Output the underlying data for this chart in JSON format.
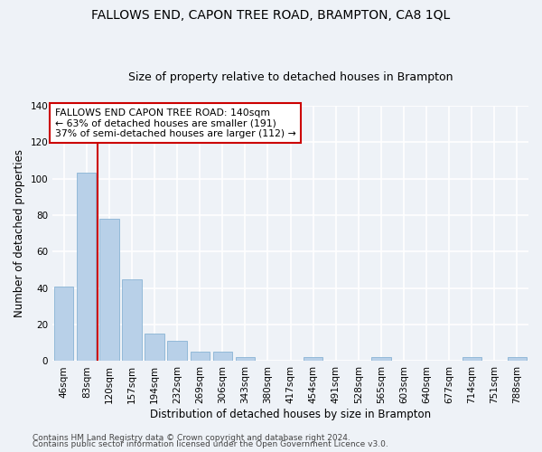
{
  "title": "FALLOWS END, CAPON TREE ROAD, BRAMPTON, CA8 1QL",
  "subtitle": "Size of property relative to detached houses in Brampton",
  "xlabel": "Distribution of detached houses by size in Brampton",
  "ylabel": "Number of detached properties",
  "bar_color": "#b8d0e8",
  "bar_edge_color": "#7aaace",
  "background_color": "#eef2f7",
  "grid_color": "#ffffff",
  "categories": [
    "46sqm",
    "83sqm",
    "120sqm",
    "157sqm",
    "194sqm",
    "232sqm",
    "269sqm",
    "306sqm",
    "343sqm",
    "380sqm",
    "417sqm",
    "454sqm",
    "491sqm",
    "528sqm",
    "565sqm",
    "603sqm",
    "640sqm",
    "677sqm",
    "714sqm",
    "751sqm",
    "788sqm"
  ],
  "values": [
    41,
    103,
    78,
    45,
    15,
    11,
    5,
    5,
    2,
    0,
    0,
    2,
    0,
    0,
    2,
    0,
    0,
    0,
    2,
    0,
    2
  ],
  "vline_x": 1.5,
  "vline_color": "#cc0000",
  "ylim": [
    0,
    140
  ],
  "yticks": [
    0,
    20,
    40,
    60,
    80,
    100,
    120,
    140
  ],
  "annotation_text": "FALLOWS END CAPON TREE ROAD: 140sqm\n← 63% of detached houses are smaller (191)\n37% of semi-detached houses are larger (112) →",
  "annotation_box_color": "#ffffff",
  "annotation_box_edge": "#cc0000",
  "footer_line1": "Contains HM Land Registry data © Crown copyright and database right 2024.",
  "footer_line2": "Contains public sector information licensed under the Open Government Licence v3.0.",
  "title_fontsize": 10,
  "subtitle_fontsize": 9,
  "axis_label_fontsize": 8.5,
  "tick_fontsize": 7.5,
  "annotation_fontsize": 7.8,
  "footer_fontsize": 6.5
}
